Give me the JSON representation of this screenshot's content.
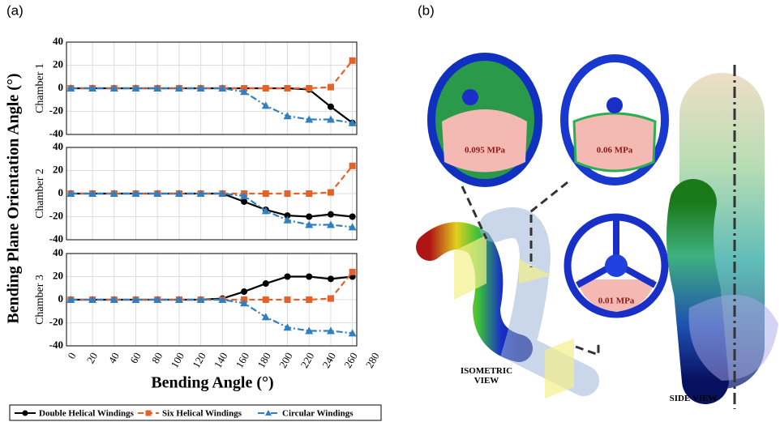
{
  "panel_a_label": "(a)",
  "panel_b_label": "(b)",
  "ylabel": "Bending Plane Orientation Angle (°)",
  "xlabel": "Bending Angle (°)",
  "chart_data": [
    {
      "type": "line",
      "ylabel": "Chamber 1",
      "x": [
        0,
        20,
        40,
        60,
        80,
        100,
        120,
        140,
        160,
        180,
        200,
        220,
        240,
        260
      ],
      "xlim": [
        -4,
        264
      ],
      "xticks": [
        0,
        20,
        40,
        60,
        80,
        100,
        120,
        140,
        160,
        180,
        200,
        220,
        240,
        260
      ],
      "ylim": [
        -40,
        40
      ],
      "yticks": [
        -40,
        -20,
        0,
        20,
        40
      ],
      "grid": true,
      "series": [
        {
          "name": "Double Helical Windings",
          "color": "#000000",
          "marker": "circle",
          "linestyle": "solid",
          "values": [
            0,
            0,
            0,
            0,
            0,
            0,
            0,
            0,
            0,
            0,
            0,
            -1,
            -16,
            -30
          ]
        },
        {
          "name": "Six Helical Windings",
          "color": "#e4622a",
          "marker": "square",
          "linestyle": "dashed",
          "values": [
            0,
            0,
            0,
            0,
            0,
            0,
            0,
            0,
            0,
            0,
            0,
            0,
            1,
            24
          ]
        },
        {
          "name": "Circular Windings",
          "color": "#2f7fc1",
          "marker": "triangle",
          "linestyle": "dashdot",
          "values": [
            0,
            0,
            0,
            0,
            0,
            0,
            0,
            0,
            -3,
            -15,
            -24,
            -27,
            -27,
            -30
          ]
        }
      ]
    },
    {
      "type": "line",
      "ylabel": "Chamber 2",
      "x": [
        0,
        20,
        40,
        60,
        80,
        100,
        120,
        140,
        160,
        180,
        200,
        220,
        240,
        260
      ],
      "xlim": [
        -4,
        264
      ],
      "xticks": [
        0,
        20,
        40,
        60,
        80,
        100,
        120,
        140,
        160,
        180,
        200,
        220,
        240,
        260
      ],
      "ylim": [
        -40,
        40
      ],
      "yticks": [
        -40,
        -20,
        0,
        20,
        40
      ],
      "grid": true,
      "series": [
        {
          "color": "#000000",
          "marker": "circle",
          "linestyle": "solid",
          "values": [
            0,
            0,
            0,
            0,
            0,
            0,
            0,
            0,
            -7,
            -14,
            -19,
            -20,
            -18,
            -20
          ]
        },
        {
          "color": "#e4622a",
          "marker": "square",
          "linestyle": "dashed",
          "values": [
            0,
            0,
            0,
            0,
            0,
            0,
            0,
            0,
            0,
            0,
            0,
            0,
            1,
            24
          ]
        },
        {
          "color": "#2f7fc1",
          "marker": "triangle",
          "linestyle": "dashdot",
          "values": [
            0,
            0,
            0,
            0,
            0,
            0,
            0,
            0,
            -2,
            -15,
            -23,
            -27,
            -27,
            -29
          ]
        }
      ]
    },
    {
      "type": "line",
      "ylabel": "Chamber 3",
      "x": [
        0,
        20,
        40,
        60,
        80,
        100,
        120,
        140,
        160,
        180,
        200,
        220,
        240,
        260
      ],
      "xlim": [
        -4,
        264
      ],
      "xticks": [
        0,
        20,
        40,
        60,
        80,
        100,
        120,
        140,
        160,
        180,
        200,
        220,
        240,
        260,
        280
      ],
      "ylim": [
        -40,
        40
      ],
      "yticks": [
        -40,
        -20,
        0,
        20,
        40
      ],
      "grid": true,
      "series": [
        {
          "color": "#000000",
          "marker": "circle",
          "linestyle": "solid",
          "values": [
            0,
            0,
            0,
            0,
            0,
            0,
            0,
            1,
            7,
            14,
            20,
            20,
            18,
            20
          ]
        },
        {
          "color": "#e4622a",
          "marker": "square",
          "linestyle": "dashed",
          "values": [
            0,
            0,
            0,
            0,
            0,
            0,
            0,
            0,
            0,
            0,
            0,
            0,
            1,
            24
          ]
        },
        {
          "color": "#2f7fc1",
          "marker": "triangle",
          "linestyle": "dashdot",
          "values": [
            0,
            0,
            0,
            0,
            0,
            0,
            0,
            0,
            -3,
            -15,
            -24,
            -27,
            -27,
            -29
          ]
        }
      ]
    }
  ],
  "annotations": {
    "pressure_1": "0.095 MPa",
    "pressure_2": "0.06 MPa",
    "pressure_3": "0.01 MPa",
    "isometric_view": "ISOMETRIC VIEW",
    "side_view": "SIDE VIEW"
  }
}
